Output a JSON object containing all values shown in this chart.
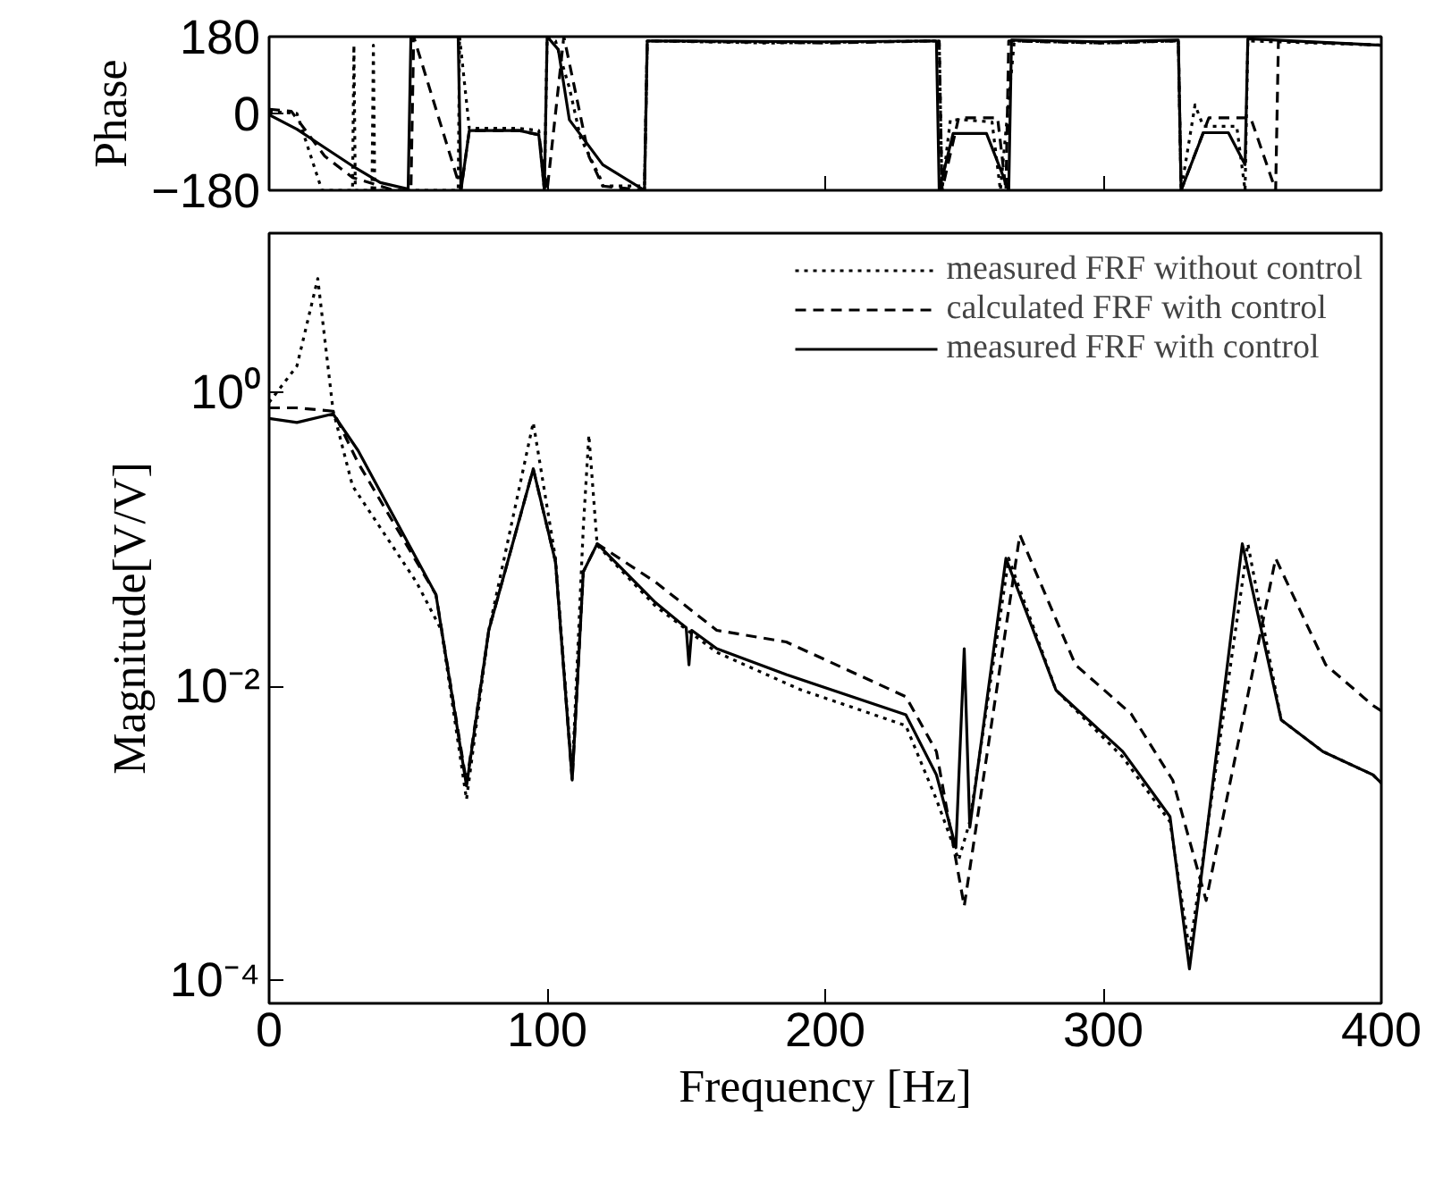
{
  "chart_data": [
    {
      "type": "line",
      "ylabel": "Phase",
      "xlim": [
        0,
        400
      ],
      "ylim": [
        -180,
        180
      ],
      "xticks": [
        0,
        100,
        200,
        300,
        400
      ],
      "yticks": [
        180,
        0,
        -180
      ],
      "tick_labels": "y",
      "grid": false,
      "legend": false,
      "series": [
        {
          "color": "#000000",
          "line_style": "dotted",
          "x": [
            0,
            10,
            15,
            19,
            30,
            30.5,
            31,
            37,
            37.5,
            38,
            50,
            68,
            68.5,
            72,
            90,
            97,
            99,
            100,
            103,
            108,
            112,
            119,
            120,
            135,
            136,
            180,
            241,
            242,
            245,
            250,
            260,
            263,
            268,
            300,
            327,
            328,
            333,
            336,
            348,
            351,
            352,
            400
          ],
          "values": [
            5,
            0,
            -100,
            -180,
            -180,
            160,
            -180,
            -180,
            160,
            -180,
            -180,
            -180,
            180,
            -35,
            -35,
            -40,
            -180,
            180,
            170,
            60,
            -57,
            -150,
            -170,
            -170,
            170,
            165,
            170,
            -180,
            -15,
            -15,
            -20,
            -180,
            170,
            165,
            170,
            -180,
            20,
            -30,
            -30,
            -180,
            170,
            160
          ]
        },
        {
          "color": "#000000",
          "line_style": "dashed",
          "x": [
            0,
            8,
            20,
            30,
            45,
            51,
            52,
            69,
            72,
            90,
            97,
            100,
            106,
            115,
            120,
            135,
            136,
            200,
            241,
            242,
            248,
            262,
            265,
            266,
            300,
            327,
            328,
            338,
            353,
            362,
            363,
            400
          ],
          "values": [
            10,
            5,
            -100,
            -150,
            -180,
            -180,
            180,
            -180,
            -40,
            -40,
            -50,
            -180,
            180,
            -100,
            -170,
            -180,
            170,
            165,
            170,
            -180,
            -10,
            -10,
            -180,
            170,
            165,
            170,
            -180,
            -10,
            -10,
            -180,
            170,
            160
          ]
        },
        {
          "color": "#000000",
          "line_style": "solid",
          "x": [
            0,
            10,
            20,
            30,
            40,
            50,
            51,
            68,
            69,
            72,
            90,
            97,
            99,
            100,
            104,
            108,
            120,
            135,
            136,
            200,
            240,
            241,
            246,
            258,
            266,
            267,
            300,
            327,
            328,
            336,
            345,
            351,
            352,
            400
          ],
          "values": [
            -3,
            -37,
            -80,
            -123,
            -162,
            -177,
            180,
            180,
            -180,
            -40,
            -40,
            -50,
            -180,
            180,
            150,
            -15,
            -120,
            -180,
            170,
            168,
            170,
            -180,
            -47,
            -47,
            -180,
            172,
            168,
            172,
            -180,
            -45,
            -45,
            -120,
            175,
            160
          ]
        }
      ]
    },
    {
      "type": "line",
      "xlabel": "Frequency [Hz]",
      "ylabel": "Magnitude[V/V]",
      "log": true,
      "xlim": [
        0,
        400
      ],
      "ylim": [
        7e-05,
        12
      ],
      "xticks": [
        0,
        100,
        200,
        300,
        400
      ],
      "yticks": [
        {
          "value": 1,
          "label": "10⁰"
        },
        {
          "value": 0.01,
          "label": "10⁻²"
        },
        {
          "value": 0.0001,
          "label": "10⁻⁴"
        }
      ],
      "grid": false,
      "legend": "top right",
      "series": [
        {
          "name": "measured FRF without control",
          "color": "#000000",
          "line_style": "dotted",
          "x": [
            0,
            10,
            17.5,
            23,
            30,
            53,
            62,
            71,
            79,
            95,
            103,
            109,
            113,
            115,
            118,
            139,
            161,
            191,
            229,
            240,
            248,
            252,
            266,
            283,
            307,
            324,
            331,
            336,
            352,
            364,
            379,
            397,
            400
          ],
          "values": [
            0.85,
            1.5,
            5.9,
            0.75,
            0.23,
            0.051,
            0.024,
            0.0017,
            0.024,
            0.62,
            0.074,
            0.0025,
            0.12,
            0.51,
            0.091,
            0.035,
            0.017,
            0.0095,
            0.0054,
            0.0017,
            0.00066,
            0.0012,
            0.074,
            0.0094,
            0.0033,
            0.0012,
            0.00016,
            0.0007,
            0.093,
            0.0059,
            0.0036,
            0.0025,
            0.0022
          ]
        },
        {
          "name": "calculated FRF with control",
          "color": "#000000",
          "line_style": "dashed",
          "x": [
            0,
            10,
            23,
            32,
            60,
            71,
            79,
            95,
            103,
            109,
            113,
            118,
            139,
            161,
            186,
            229,
            240,
            250,
            270,
            290,
            310,
            325,
            337,
            362,
            380,
            397,
            400
          ],
          "values": [
            0.78,
            0.78,
            0.74,
            0.33,
            0.042,
            0.0022,
            0.024,
            0.3,
            0.07,
            0.0023,
            0.06,
            0.093,
            0.051,
            0.024,
            0.02,
            0.0085,
            0.0036,
            0.00032,
            0.107,
            0.014,
            0.0065,
            0.0023,
            0.00035,
            0.074,
            0.014,
            0.0074,
            0.0068
          ]
        },
        {
          "name": "measured FRF with control",
          "color": "#000000",
          "line_style": "solid",
          "x": [
            0,
            10,
            23,
            32,
            60,
            71,
            79,
            95,
            103,
            109,
            113,
            118,
            139,
            150,
            151,
            152,
            161,
            186,
            229,
            240,
            247,
            250,
            252,
            265,
            283,
            307,
            324,
            331,
            336,
            350,
            364,
            379,
            397,
            400
          ],
          "values": [
            0.66,
            0.62,
            0.71,
            0.4,
            0.042,
            0.0021,
            0.024,
            0.3,
            0.07,
            0.0023,
            0.06,
            0.093,
            0.037,
            0.025,
            0.014,
            0.024,
            0.018,
            0.012,
            0.0064,
            0.0025,
            0.0008,
            0.018,
            0.0011,
            0.074,
            0.0094,
            0.0036,
            0.0013,
            0.00012,
            0.00066,
            0.093,
            0.0059,
            0.0036,
            0.0025,
            0.0022
          ]
        }
      ]
    }
  ]
}
